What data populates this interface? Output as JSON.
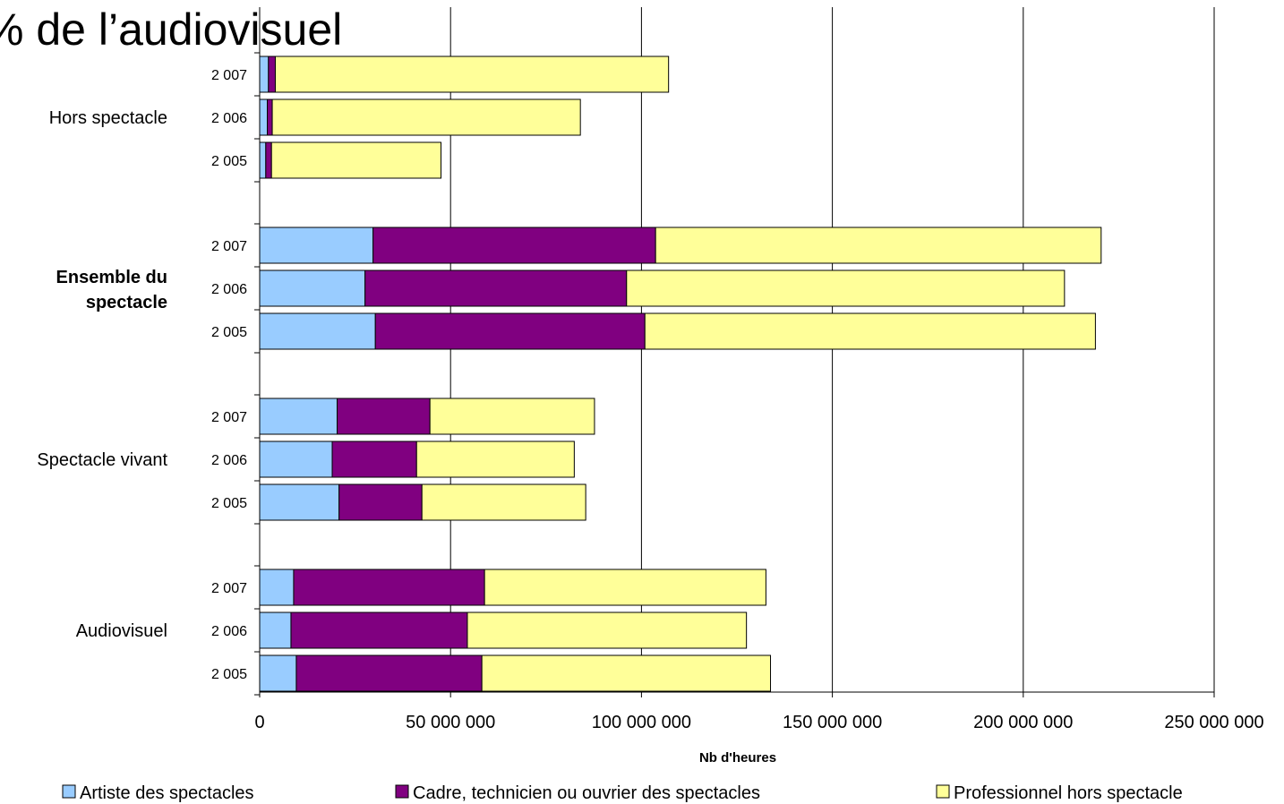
{
  "chart_data": {
    "type": "bar",
    "orientation": "horizontal",
    "stacked": true,
    "title": "% de l’audiovisuel",
    "xlabel": "Nb d'heures",
    "ylabel": "",
    "xlim": [
      0,
      250000000
    ],
    "x_ticks": [
      0,
      50000000,
      100000000,
      150000000,
      200000000,
      250000000
    ],
    "x_tick_labels": [
      "0",
      "50 000 000",
      "100 000 000",
      "150 000 000",
      "200 000 000",
      "250 000 000"
    ],
    "grid": "vertical",
    "legend_position": "bottom",
    "groups": [
      {
        "label": "Hors spectacle",
        "bold": false,
        "years": [
          "2 007",
          "2 006",
          "2 005"
        ]
      },
      {
        "label": "Ensemble du spectacle",
        "bold": true,
        "years": [
          "2 007",
          "2 006",
          "2 005"
        ]
      },
      {
        "label": "Spectacle vivant",
        "bold": false,
        "years": [
          "2 007",
          "2 006",
          "2 005"
        ]
      },
      {
        "label": "Audiovisuel",
        "bold": false,
        "years": [
          "2 007",
          "2 006",
          "2 005"
        ]
      }
    ],
    "series": [
      {
        "name": "Artiste des spectacles",
        "color": "#99ccff",
        "values": [
          [
            2300000,
            2000000,
            1600000
          ],
          [
            29700000,
            27600000,
            30300000
          ],
          [
            20300000,
            19000000,
            20800000
          ],
          [
            8900000,
            8200000,
            9600000
          ]
        ]
      },
      {
        "name": "Cadre, technicien ou ouvrier des spectacles",
        "color": "#800080",
        "values": [
          [
            1800000,
            1300000,
            1500000
          ],
          [
            74000000,
            68500000,
            70600000
          ],
          [
            24300000,
            22100000,
            21700000
          ],
          [
            50000000,
            46200000,
            48600000
          ]
        ]
      },
      {
        "name": "Professionnel hors spectacle",
        "color": "#ffff99",
        "values": [
          [
            103000000,
            80700000,
            44400000
          ],
          [
            116700000,
            114700000,
            118000000
          ],
          [
            43100000,
            41300000,
            42900000
          ],
          [
            73700000,
            73100000,
            75600000
          ]
        ]
      }
    ]
  }
}
